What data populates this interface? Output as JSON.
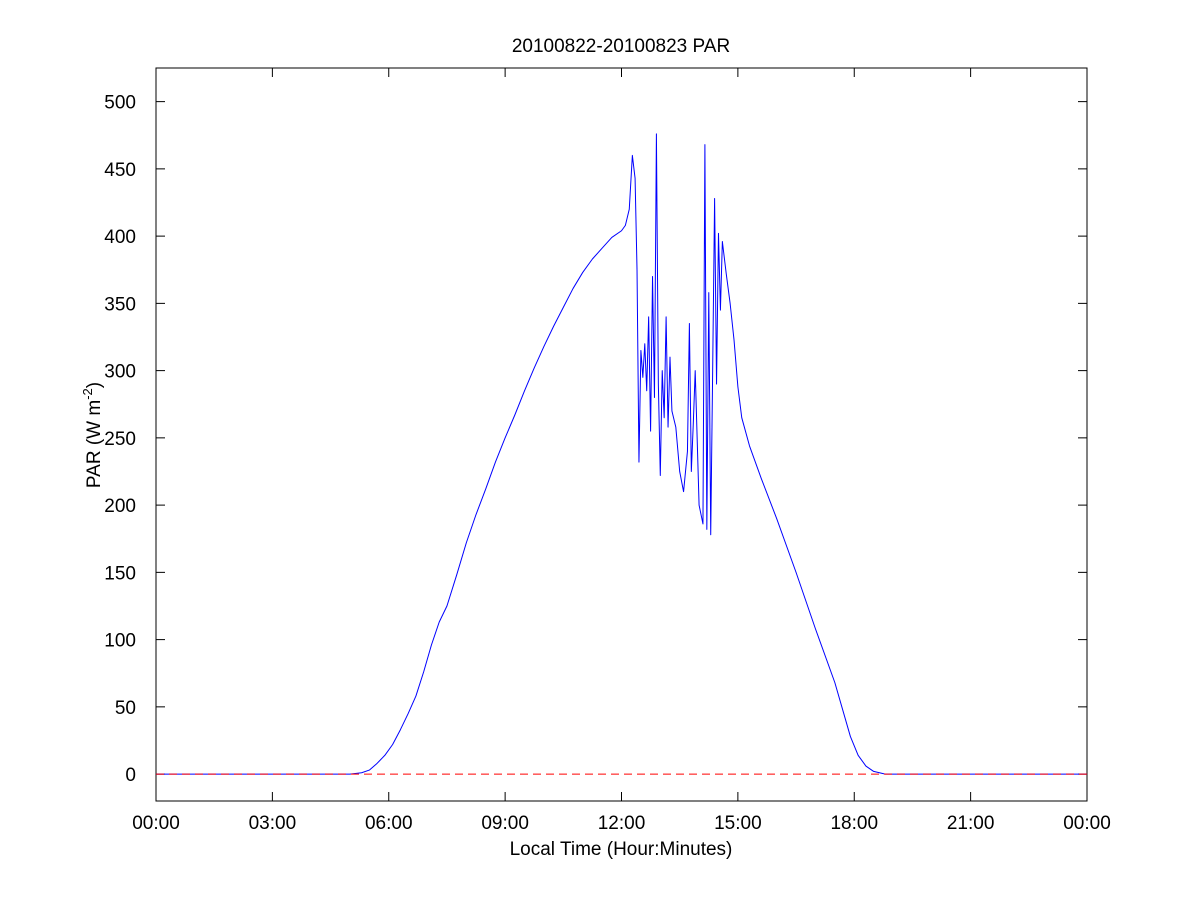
{
  "chart_data": {
    "type": "line",
    "title": "20100822-20100823 PAR",
    "xlabel": "Local Time (Hour:Minutes)",
    "ylabel": {
      "base": "PAR (W m",
      "superscript": "-2",
      "suffix": ")"
    },
    "xlim": [
      0,
      24
    ],
    "ylim": [
      -20,
      525
    ],
    "x_ticks": [
      0,
      3,
      6,
      9,
      12,
      15,
      18,
      21,
      24
    ],
    "x_tick_labels": [
      "00:00",
      "03:00",
      "06:00",
      "09:00",
      "12:00",
      "15:00",
      "18:00",
      "21:00",
      "00:00"
    ],
    "y_ticks": [
      0,
      50,
      100,
      150,
      200,
      250,
      300,
      350,
      400,
      450,
      500
    ],
    "y_tick_labels": [
      "0",
      "50",
      "100",
      "150",
      "200",
      "250",
      "300",
      "350",
      "400",
      "450",
      "500"
    ],
    "grid": false,
    "series": [
      {
        "color": "#0000ff",
        "style": "solid",
        "points": [
          [
            0.0,
            0
          ],
          [
            5.0,
            0
          ],
          [
            5.3,
            1
          ],
          [
            5.5,
            3
          ],
          [
            5.7,
            8
          ],
          [
            5.9,
            14
          ],
          [
            6.1,
            22
          ],
          [
            6.3,
            33
          ],
          [
            6.5,
            45
          ],
          [
            6.7,
            58
          ],
          [
            6.9,
            76
          ],
          [
            7.1,
            96
          ],
          [
            7.3,
            113
          ],
          [
            7.5,
            125
          ],
          [
            7.75,
            148
          ],
          [
            8.0,
            172
          ],
          [
            8.25,
            193
          ],
          [
            8.5,
            212
          ],
          [
            8.75,
            232
          ],
          [
            9.0,
            250
          ],
          [
            9.25,
            267
          ],
          [
            9.5,
            285
          ],
          [
            9.75,
            302
          ],
          [
            10.0,
            318
          ],
          [
            10.25,
            333
          ],
          [
            10.5,
            347
          ],
          [
            10.75,
            361
          ],
          [
            11.0,
            373
          ],
          [
            11.25,
            383
          ],
          [
            11.5,
            391
          ],
          [
            11.75,
            399
          ],
          [
            12.0,
            404
          ],
          [
            12.1,
            408
          ],
          [
            12.2,
            420
          ],
          [
            12.28,
            460
          ],
          [
            12.35,
            443
          ],
          [
            12.4,
            375
          ],
          [
            12.45,
            232
          ],
          [
            12.5,
            315
          ],
          [
            12.55,
            295
          ],
          [
            12.6,
            320
          ],
          [
            12.65,
            285
          ],
          [
            12.7,
            340
          ],
          [
            12.75,
            255
          ],
          [
            12.8,
            370
          ],
          [
            12.85,
            280
          ],
          [
            12.9,
            476
          ],
          [
            12.95,
            290
          ],
          [
            13.0,
            222
          ],
          [
            13.05,
            300
          ],
          [
            13.1,
            265
          ],
          [
            13.15,
            340
          ],
          [
            13.2,
            258
          ],
          [
            13.25,
            310
          ],
          [
            13.3,
            270
          ],
          [
            13.4,
            258
          ],
          [
            13.5,
            225
          ],
          [
            13.6,
            210
          ],
          [
            13.7,
            240
          ],
          [
            13.75,
            335
          ],
          [
            13.8,
            225
          ],
          [
            13.85,
            260
          ],
          [
            13.9,
            300
          ],
          [
            14.0,
            200
          ],
          [
            14.1,
            186
          ],
          [
            14.15,
            468
          ],
          [
            14.2,
            182
          ],
          [
            14.25,
            358
          ],
          [
            14.3,
            178
          ],
          [
            14.35,
            300
          ],
          [
            14.4,
            428
          ],
          [
            14.45,
            290
          ],
          [
            14.5,
            402
          ],
          [
            14.55,
            345
          ],
          [
            14.6,
            396
          ],
          [
            14.7,
            372
          ],
          [
            14.8,
            350
          ],
          [
            14.9,
            323
          ],
          [
            15.0,
            288
          ],
          [
            15.1,
            265
          ],
          [
            15.3,
            244
          ],
          [
            15.6,
            220
          ],
          [
            16.0,
            190
          ],
          [
            16.5,
            150
          ],
          [
            17.0,
            108
          ],
          [
            17.5,
            68
          ],
          [
            17.9,
            28
          ],
          [
            18.1,
            14
          ],
          [
            18.3,
            6
          ],
          [
            18.5,
            2
          ],
          [
            18.8,
            0
          ],
          [
            24.0,
            0
          ]
        ]
      },
      {
        "color": "#ff0000",
        "style": "dashed",
        "points": [
          [
            0,
            0
          ],
          [
            24,
            0
          ]
        ]
      }
    ]
  }
}
